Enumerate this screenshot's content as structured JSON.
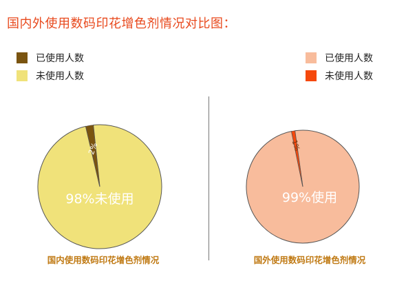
{
  "title": "国内外使用数码印花增色剂情况对比图：",
  "chart_data": [
    {
      "type": "pie",
      "legend": [
        {
          "label": "已使用人数",
          "color": "#7a5410"
        },
        {
          "label": "未使用人数",
          "color": "#f0e27a"
        }
      ],
      "slices": [
        {
          "label": "已使用人数",
          "value": 2,
          "color": "#7a5410",
          "data_label": "2%"
        },
        {
          "label": "未使用人数",
          "value": 98,
          "color": "#f0e27a",
          "data_label": "98%未使用"
        }
      ],
      "caption": "国内使用数码印花增色剂情况"
    },
    {
      "type": "pie",
      "legend": [
        {
          "label": "已使用人数",
          "color": "#f8bc9c"
        },
        {
          "label": "未使用人数",
          "color": "#f5480c"
        }
      ],
      "slices": [
        {
          "label": "已使用人数",
          "value": 99,
          "color": "#f8bc9c",
          "data_label": "99%使用"
        },
        {
          "label": "未使用人数",
          "value": 1,
          "color": "#f5480c",
          "data_label": "1%"
        }
      ],
      "caption": "国外使用数码印花增色剂情况"
    }
  ]
}
